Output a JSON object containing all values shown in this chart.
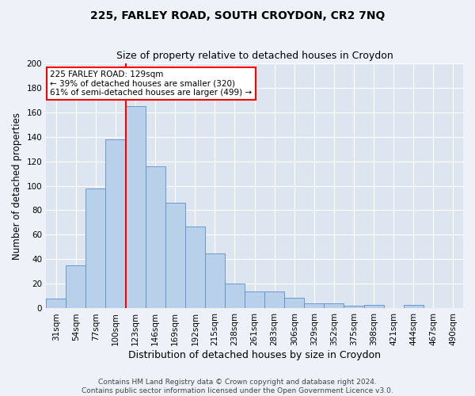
{
  "title1": "225, FARLEY ROAD, SOUTH CROYDON, CR2 7NQ",
  "title2": "Size of property relative to detached houses in Croydon",
  "xlabel": "Distribution of detached houses by size in Croydon",
  "ylabel": "Number of detached properties",
  "categories": [
    "31sqm",
    "54sqm",
    "77sqm",
    "100sqm",
    "123sqm",
    "146sqm",
    "169sqm",
    "192sqm",
    "215sqm",
    "238sqm",
    "261sqm",
    "283sqm",
    "306sqm",
    "329sqm",
    "352sqm",
    "375sqm",
    "398sqm",
    "421sqm",
    "444sqm",
    "467sqm",
    "490sqm"
  ],
  "values": [
    8,
    35,
    98,
    138,
    165,
    116,
    86,
    67,
    45,
    20,
    14,
    14,
    9,
    4,
    4,
    2,
    3,
    0,
    3,
    0,
    0
  ],
  "bar_color": "#b8d0ea",
  "bar_edge_color": "#5b8fc9",
  "annotation_text": "225 FARLEY ROAD: 129sqm\n← 39% of detached houses are smaller (320)\n61% of semi-detached houses are larger (499) →",
  "annotation_box_color": "white",
  "annotation_box_edge": "red",
  "ylim": [
    0,
    200
  ],
  "yticks": [
    0,
    20,
    40,
    60,
    80,
    100,
    120,
    140,
    160,
    180,
    200
  ],
  "footer1": "Contains HM Land Registry data © Crown copyright and database right 2024.",
  "footer2": "Contains public sector information licensed under the Open Government Licence v3.0.",
  "bg_color": "#eef2f8",
  "plot_bg_color": "#dde6f0",
  "grid_color": "white",
  "red_line_color": "red",
  "title1_fontsize": 10,
  "title2_fontsize": 9,
  "tick_fontsize": 7.5,
  "ylabel_fontsize": 8.5,
  "xlabel_fontsize": 9,
  "annotation_fontsize": 7.5,
  "footer_fontsize": 6.5
}
